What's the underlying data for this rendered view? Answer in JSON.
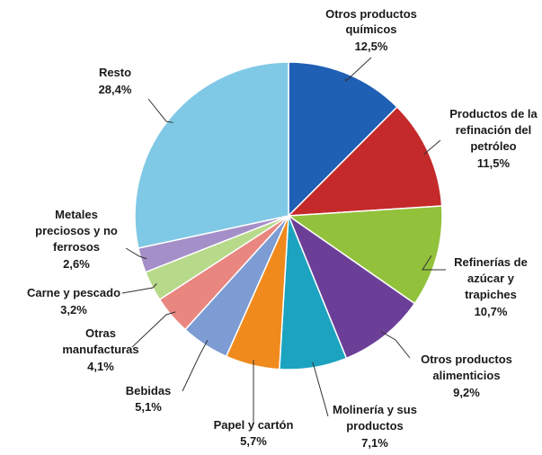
{
  "chart_data": {
    "type": "pie",
    "title": "",
    "slices": [
      {
        "label": "Otros productos químicos",
        "value_label": "12,5%",
        "value": 12.5,
        "color": "#1f5fb4"
      },
      {
        "label": "Productos de la refinación del petróleo",
        "value_label": "11,5%",
        "value": 11.5,
        "color": "#c42a2a"
      },
      {
        "label": "Refinerías de azúcar y trapiches",
        "value_label": "10,7%",
        "value": 10.7,
        "color": "#92c13c"
      },
      {
        "label": "Otros productos alimenticios",
        "value_label": "9,2%",
        "value": 9.2,
        "color": "#6b3f98"
      },
      {
        "label": "Molinería y sus productos",
        "value_label": "7,1%",
        "value": 7.1,
        "color": "#1ca3bf"
      },
      {
        "label": "Papel y cartón",
        "value_label": "5,7%",
        "value": 5.7,
        "color": "#f08a1d"
      },
      {
        "label": "Bebidas",
        "value_label": "5,1%",
        "value": 5.1,
        "color": "#7d9cd4"
      },
      {
        "label": "Otras manufacturas",
        "value_label": "4,1%",
        "value": 4.1,
        "color": "#e98680"
      },
      {
        "label": "Carne y pescado",
        "value_label": "3,2%",
        "value": 3.2,
        "color": "#b7d98a"
      },
      {
        "label": "Metales preciosos y no ferrosos",
        "value_label": "2,6%",
        "value": 2.6,
        "color": "#a48fc8"
      },
      {
        "label": "Resto",
        "value_label": "28,4%",
        "value": 28.4,
        "color": "#80c9e6"
      }
    ]
  }
}
